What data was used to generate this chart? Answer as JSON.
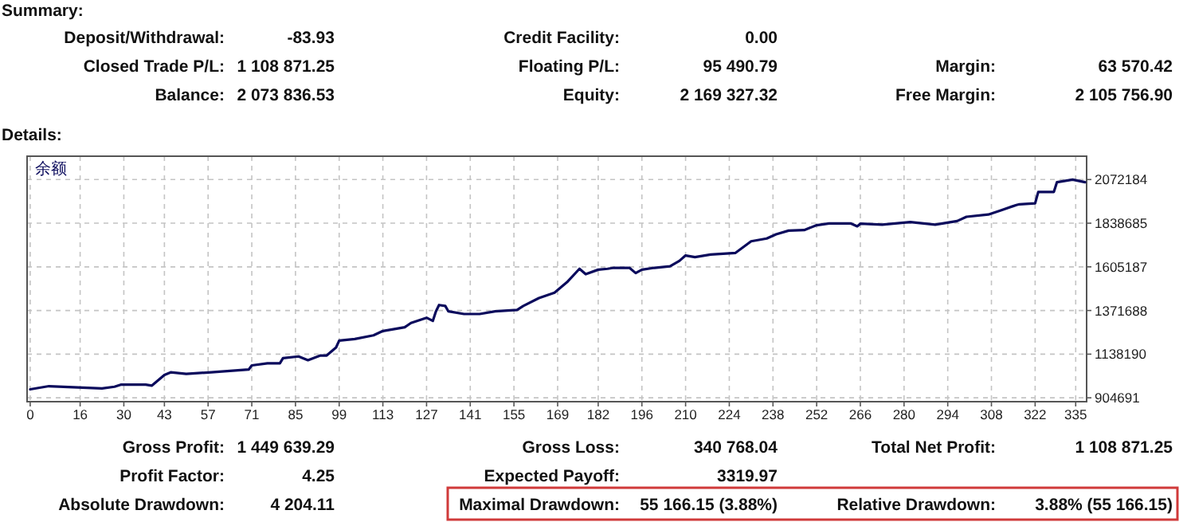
{
  "chart_data": {
    "type": "line",
    "x": [
      0,
      6,
      23,
      27,
      29,
      37,
      39,
      43,
      45,
      50,
      58,
      70,
      71,
      76,
      80,
      81,
      86,
      89,
      93,
      95,
      98,
      99,
      104,
      110,
      113,
      120,
      122,
      127,
      129,
      130,
      131,
      133,
      134,
      139,
      144,
      149,
      156,
      158,
      163,
      168,
      172,
      176,
      178,
      182,
      185,
      187,
      192,
      194,
      196,
      200,
      205,
      208,
      210,
      213,
      218,
      226,
      231,
      236,
      239,
      243,
      248,
      252,
      256,
      263,
      265,
      266,
      273,
      282,
      290,
      297,
      300,
      307,
      311,
      316,
      317,
      322,
      323,
      328,
      329,
      334,
      338
    ],
    "series": [
      {
        "name": "余额",
        "color": "#0a0a5c",
        "values": [
          950000,
          967000,
          955000,
          964000,
          975000,
          975000,
          970000,
          1027000,
          1041000,
          1033000,
          1041000,
          1056000,
          1078000,
          1089000,
          1089000,
          1117000,
          1126000,
          1106000,
          1131000,
          1131000,
          1174000,
          1211000,
          1219000,
          1239000,
          1262000,
          1282000,
          1305000,
          1333000,
          1316000,
          1367000,
          1401000,
          1396000,
          1367000,
          1353000,
          1353000,
          1367000,
          1375000,
          1396000,
          1438000,
          1467000,
          1523000,
          1595000,
          1566000,
          1590000,
          1595000,
          1600000,
          1600000,
          1572000,
          1590000,
          1600000,
          1608000,
          1637000,
          1666000,
          1657000,
          1671000,
          1680000,
          1742000,
          1757000,
          1779000,
          1799000,
          1802000,
          1828000,
          1837000,
          1837000,
          1822000,
          1836000,
          1831000,
          1845000,
          1831000,
          1850000,
          1873000,
          1885000,
          1907000,
          1936000,
          1940000,
          1945000,
          2006000,
          2006000,
          2058000,
          2072000,
          2058000
        ]
      }
    ],
    "xlim": [
      -1,
      338.5
    ],
    "xticks": [
      0,
      16,
      30,
      43,
      57,
      71,
      85,
      99,
      113,
      127,
      141,
      155,
      169,
      182,
      196,
      210,
      224,
      238,
      252,
      266,
      280,
      294,
      308,
      322,
      335
    ],
    "ylim": [
      884000,
      2197000
    ],
    "yticks": [
      904691,
      1138190,
      1371688,
      1605187,
      1838685,
      2072184
    ],
    "grid": true,
    "legend": "top left",
    "annotations": [
      "Summary:",
      "Deposit/Withdrawal:",
      "-83.93",
      "Credit Facility:",
      "0.00",
      "Closed Trade P/L:",
      "1 108 871.25",
      "Floating P/L:",
      "95 490.79",
      "Margin:",
      "63 570.42",
      "Balance:",
      "2 073 836.53",
      "Equity:",
      "2 169 327.32",
      "Free Margin:",
      "2 105 756.90",
      "Details:",
      "Gross Profit:",
      "1 449 639.29",
      "Gross Loss:",
      "340 768.04",
      "Total Net Profit:",
      "1 108 871.25",
      "Profit Factor:",
      "4.25",
      "Expected Payoff:",
      "3319.97",
      "Absolute Drawdown:",
      "4 204.11",
      "Maximal Drawdown:",
      "55 166.15 (3.88%)",
      "Relative Drawdown:",
      "3.88% (55 166.15)"
    ]
  }
}
